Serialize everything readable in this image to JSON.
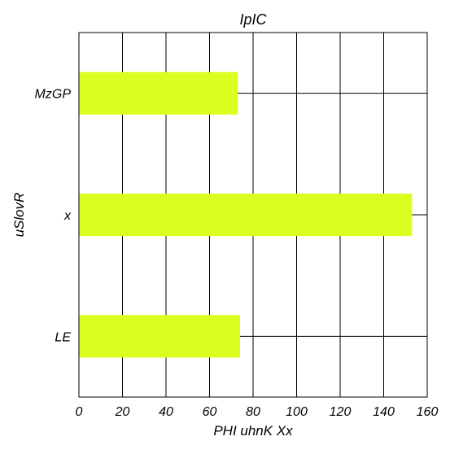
{
  "chart_data": {
    "type": "bar",
    "orientation": "horizontal",
    "title": "IpIC",
    "xlabel": "PHI uhnK Xx",
    "ylabel": "uSlovR",
    "categories": [
      "MzGP",
      "x",
      "LE"
    ],
    "values": [
      73,
      153,
      74
    ],
    "xlim": [
      0,
      160
    ],
    "xticks": [
      0,
      20,
      40,
      60,
      80,
      100,
      120,
      140,
      160
    ],
    "grid": true,
    "bar_color": "#dbff1e",
    "grid_color": "#000000"
  }
}
